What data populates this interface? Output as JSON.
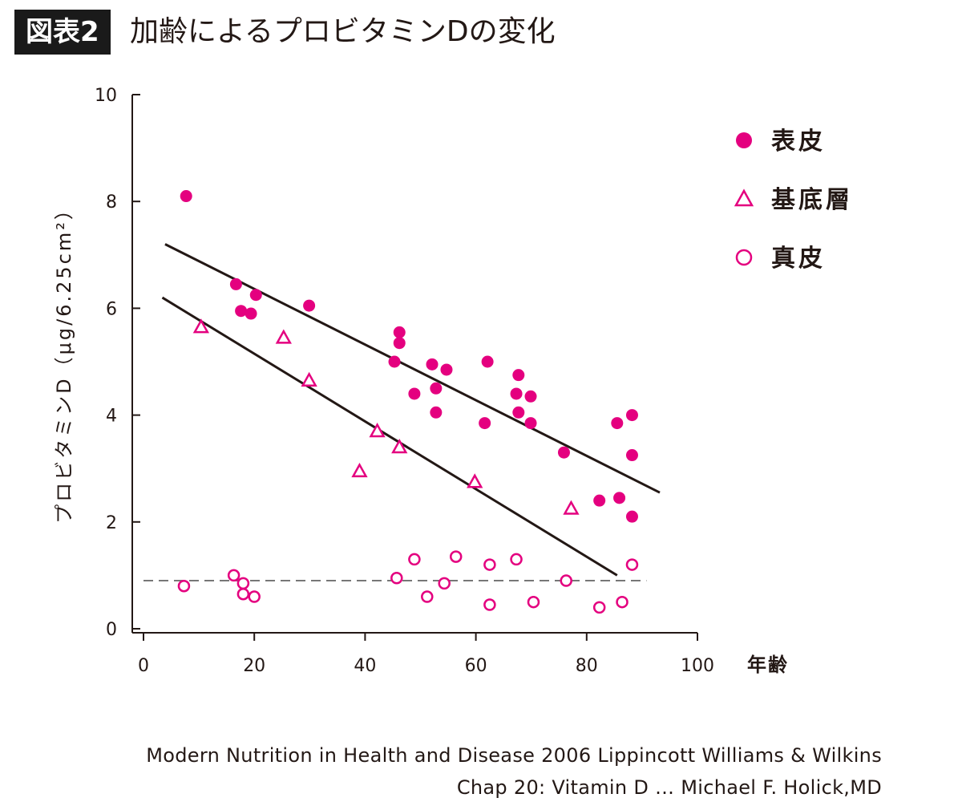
{
  "figure_label": "図表2",
  "title": "加齢によるプロビタミンDの変化",
  "source_line1": "Modern Nutrition in Health and Disease 2006 Lippincott Williams & Wilkins",
  "source_line2": "Chap 20: Vitamin D … Michael F. Holick,MD",
  "colors": {
    "accent": "#e4007f",
    "line": "#231815",
    "dashed": "#777777"
  },
  "chart_data": {
    "type": "scatter",
    "title": "加齢によるプロビタミンDの変化",
    "xlabel": "年齢",
    "ylabel": "プロビタミンD（μg/6.25cm²）",
    "xlim": [
      0,
      100
    ],
    "ylim": [
      0,
      10
    ],
    "xticks": [
      0,
      20,
      40,
      60,
      80,
      100
    ],
    "yticks": [
      0,
      2,
      4,
      6,
      8,
      10
    ],
    "grid": false,
    "legend_position": "top-right",
    "series": [
      {
        "name": "表皮",
        "marker": "filled-circle",
        "points": [
          [
            7.7,
            8.1
          ],
          [
            16.7,
            6.45
          ],
          [
            17.6,
            5.95
          ],
          [
            19.4,
            5.9
          ],
          [
            20.3,
            6.25
          ],
          [
            29.9,
            6.05
          ],
          [
            45.3,
            5.0
          ],
          [
            46.2,
            5.55
          ],
          [
            46.2,
            5.35
          ],
          [
            48.9,
            4.4
          ],
          [
            52.1,
            4.95
          ],
          [
            52.8,
            4.5
          ],
          [
            52.8,
            4.05
          ],
          [
            54.7,
            4.85
          ],
          [
            61.6,
            3.85
          ],
          [
            62.1,
            5.0
          ],
          [
            67.3,
            4.4
          ],
          [
            67.7,
            4.75
          ],
          [
            67.7,
            4.05
          ],
          [
            69.9,
            4.35
          ],
          [
            69.9,
            3.85
          ],
          [
            75.9,
            3.3
          ],
          [
            82.3,
            2.4
          ],
          [
            85.5,
            3.85
          ],
          [
            85.9,
            2.45
          ],
          [
            88.2,
            4.0
          ],
          [
            88.2,
            3.25
          ],
          [
            88.2,
            2.1
          ]
        ]
      },
      {
        "name": "基底層",
        "marker": "open-triangle",
        "points": [
          [
            10.4,
            5.65
          ],
          [
            25.3,
            5.45
          ],
          [
            29.9,
            4.65
          ],
          [
            39.0,
            2.95
          ],
          [
            42.2,
            3.7
          ],
          [
            46.2,
            3.4
          ],
          [
            59.8,
            2.75
          ],
          [
            77.2,
            2.25
          ]
        ]
      },
      {
        "name": "真皮",
        "marker": "open-circle",
        "points": [
          [
            7.3,
            0.8
          ],
          [
            16.3,
            1.0
          ],
          [
            18.0,
            0.85
          ],
          [
            18.0,
            0.65
          ],
          [
            20.0,
            0.6
          ],
          [
            45.7,
            0.95
          ],
          [
            48.9,
            1.3
          ],
          [
            51.2,
            0.6
          ],
          [
            54.3,
            0.85
          ],
          [
            56.4,
            1.35
          ],
          [
            62.5,
            1.2
          ],
          [
            62.5,
            0.45
          ],
          [
            67.3,
            1.3
          ],
          [
            70.4,
            0.5
          ],
          [
            76.3,
            0.9
          ],
          [
            82.3,
            0.4
          ],
          [
            86.4,
            0.5
          ],
          [
            88.2,
            1.2
          ]
        ]
      }
    ],
    "trend_lines": [
      {
        "series": "表皮",
        "from": [
          3.9,
          7.2
        ],
        "to": [
          93.2,
          2.55
        ]
      },
      {
        "series": "基底層",
        "from": [
          3.4,
          6.2
        ],
        "to": [
          85.5,
          1.0
        ]
      }
    ],
    "reference_line": {
      "style": "dashed",
      "y": 0.9,
      "x_from": 0,
      "x_to": 90.8
    }
  }
}
